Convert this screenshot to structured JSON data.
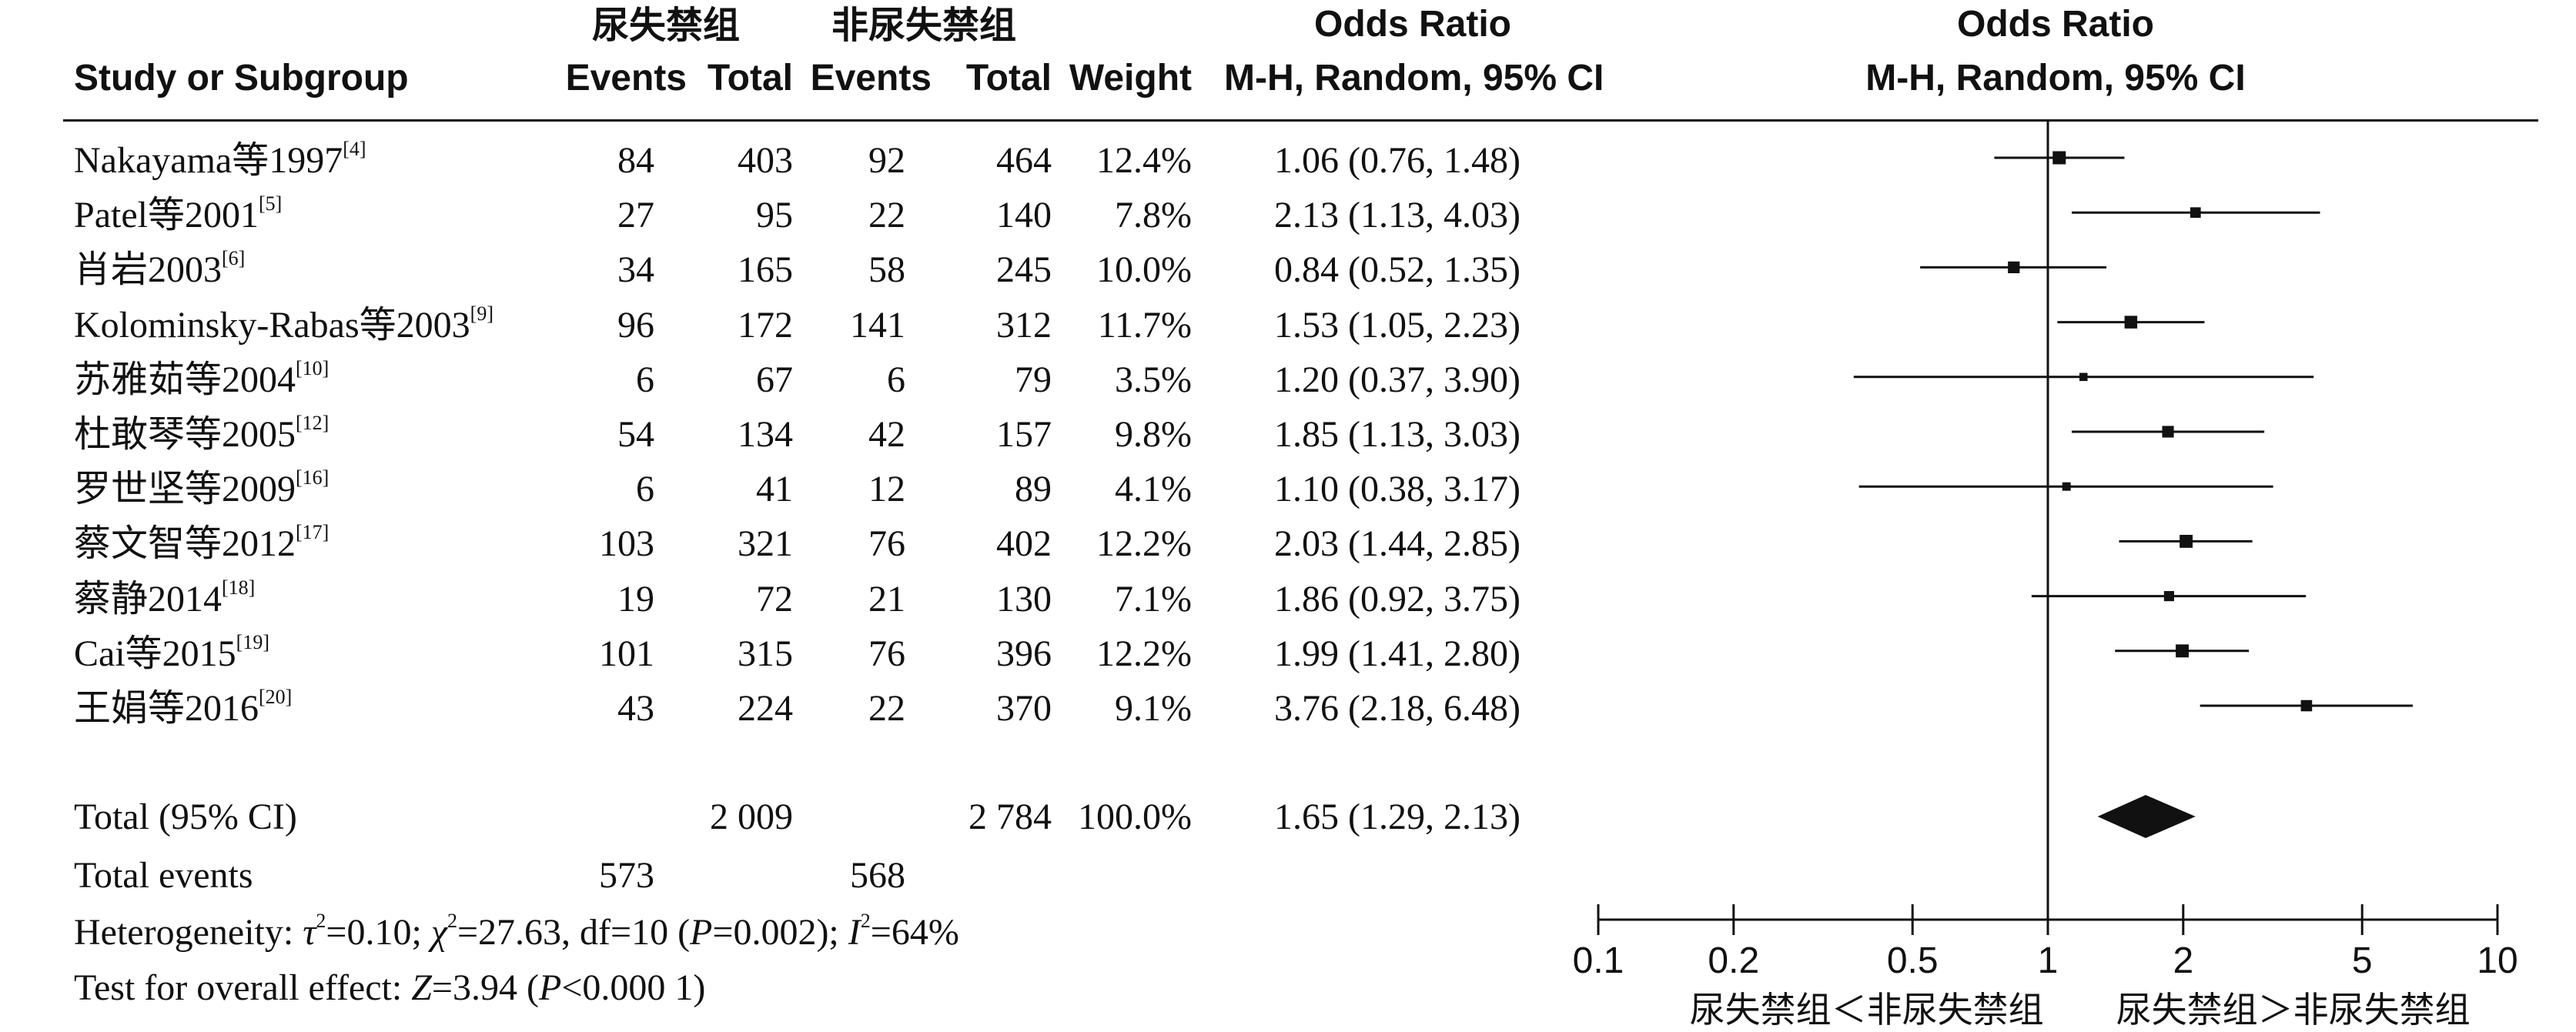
{
  "header": {
    "group1": "尿失禁组",
    "group2": "非尿失禁组",
    "study_col": "Study or Subgroup",
    "events": "Events",
    "total": "Total",
    "weight": "Weight",
    "or_title": "Odds Ratio",
    "or_method": "M-H, Random, 95% CI",
    "plot_title": "Odds Ratio",
    "plot_method": "M-H, Random, 95% CI"
  },
  "studies": [
    {
      "name": "Nakayama等1997",
      "ref": "[4]",
      "e1": "84",
      "t1": "403",
      "e2": "92",
      "t2": "464",
      "weight": "12.4%",
      "ci_text": "1.06 (0.76, 1.48)"
    },
    {
      "name": "Patel等2001",
      "ref": "[5]",
      "e1": "27",
      "t1": "95",
      "e2": "22",
      "t2": "140",
      "weight": "7.8%",
      "ci_text": "2.13 (1.13, 4.03)"
    },
    {
      "name": "肖岩2003",
      "ref": "[6]",
      "e1": "34",
      "t1": "165",
      "e2": "58",
      "t2": "245",
      "weight": "10.0%",
      "ci_text": "0.84 (0.52, 1.35)"
    },
    {
      "name": "Kolominsky-Rabas等2003",
      "ref": "[9]",
      "e1": "96",
      "t1": "172",
      "e2": "141",
      "t2": "312",
      "weight": "11.7%",
      "ci_text": "1.53 (1.05, 2.23)"
    },
    {
      "name": "苏雅茹等2004",
      "ref": "[10]",
      "e1": "6",
      "t1": "67",
      "e2": "6",
      "t2": "79",
      "weight": "3.5%",
      "ci_text": "1.20 (0.37, 3.90)"
    },
    {
      "name": "杜敢琴等2005",
      "ref": "[12]",
      "e1": "54",
      "t1": "134",
      "e2": "42",
      "t2": "157",
      "weight": "9.8%",
      "ci_text": "1.85 (1.13, 3.03)"
    },
    {
      "name": "罗世坚等2009",
      "ref": "[16]",
      "e1": "6",
      "t1": "41",
      "e2": "12",
      "t2": "89",
      "weight": "4.1%",
      "ci_text": "1.10 (0.38, 3.17)"
    },
    {
      "name": "蔡文智等2012",
      "ref": "[17]",
      "e1": "103",
      "t1": "321",
      "e2": "76",
      "t2": "402",
      "weight": "12.2%",
      "ci_text": "2.03 (1.44, 2.85)"
    },
    {
      "name": "蔡静2014",
      "ref": "[18]",
      "e1": "19",
      "t1": "72",
      "e2": "21",
      "t2": "130",
      "weight": "7.1%",
      "ci_text": "1.86 (0.92, 3.75)"
    },
    {
      "name": "Cai等2015",
      "ref": "[19]",
      "e1": "101",
      "t1": "315",
      "e2": "76",
      "t2": "396",
      "weight": "12.2%",
      "ci_text": "1.99 (1.41, 2.80)"
    },
    {
      "name": "王娟等2016",
      "ref": "[20]",
      "e1": "43",
      "t1": "224",
      "e2": "22",
      "t2": "370",
      "weight": "9.1%",
      "ci_text": "3.76 (2.18, 6.48)"
    }
  ],
  "total": {
    "label": "Total (95% CI)",
    "t1": "2 009",
    "t2": "2 784",
    "weight": "100.0%",
    "ci_text": "1.65 (1.29, 2.13)"
  },
  "total_events": {
    "label": "Total events",
    "e1": "573",
    "e2": "568"
  },
  "heterogeneity": {
    "prefix": "Heterogeneity: ",
    "tau_sym": "τ",
    "tau_val": "=0.10; ",
    "chi_sym": "χ",
    "chi_val": "=27.63, df=10 (",
    "p_sym": "P",
    "p_val": "=0.002); ",
    "i_sym": "I",
    "i_val": "=64%"
  },
  "overall": {
    "prefix": "Test for overall effect: ",
    "z_sym": "Z",
    "z_val": "=3.94 (",
    "p_sym": "P",
    "p_val": "<0.000 1)"
  },
  "axis_labels": {
    "favours_left": "尿失禁组＜非尿失禁组",
    "favours_right": "尿失禁组＞非尿失禁组"
  },
  "chart_data": {
    "type": "forest",
    "scale": "log",
    "xlim": [
      0.1,
      10
    ],
    "ticks": [
      "0.1",
      "0.2",
      "0.5",
      "1",
      "2",
      "5",
      "10"
    ],
    "tick_values": [
      0.1,
      0.2,
      0.5,
      1,
      2,
      5,
      10
    ],
    "reference_line": 1,
    "series": [
      {
        "or": 1.06,
        "lo": 0.76,
        "hi": 1.48,
        "weight": 12.4
      },
      {
        "or": 2.13,
        "lo": 1.13,
        "hi": 4.03,
        "weight": 7.8
      },
      {
        "or": 0.84,
        "lo": 0.52,
        "hi": 1.35,
        "weight": 10.0
      },
      {
        "or": 1.53,
        "lo": 1.05,
        "hi": 2.23,
        "weight": 11.7
      },
      {
        "or": 1.2,
        "lo": 0.37,
        "hi": 3.9,
        "weight": 3.5
      },
      {
        "or": 1.85,
        "lo": 1.13,
        "hi": 3.03,
        "weight": 9.8
      },
      {
        "or": 1.1,
        "lo": 0.38,
        "hi": 3.17,
        "weight": 4.1
      },
      {
        "or": 2.03,
        "lo": 1.44,
        "hi": 2.85,
        "weight": 12.2
      },
      {
        "or": 1.86,
        "lo": 0.92,
        "hi": 3.75,
        "weight": 7.1
      },
      {
        "or": 1.99,
        "lo": 1.41,
        "hi": 2.8,
        "weight": 12.2
      },
      {
        "or": 3.76,
        "lo": 2.18,
        "hi": 6.48,
        "weight": 9.1
      }
    ],
    "pooled": {
      "or": 1.65,
      "lo": 1.29,
      "hi": 2.13
    }
  }
}
